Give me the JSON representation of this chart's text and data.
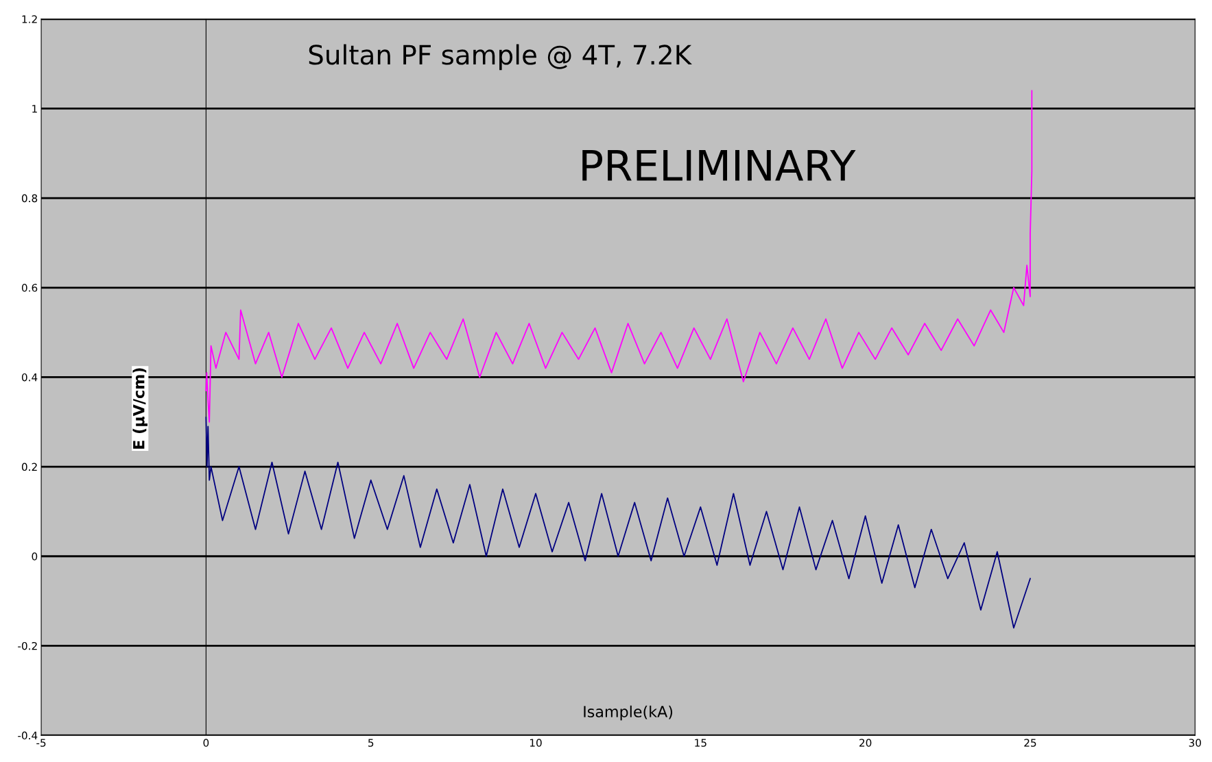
{
  "chart_data": {
    "type": "line",
    "title": "Sultan PF sample @ 4T, 7.2K",
    "xlabel": "Isample(kA)",
    "ylabel": "E (μV/cm)",
    "annotations": [
      "PRELIMINARY"
    ],
    "series": [
      {
        "color": "#000080",
        "x": [
          0,
          0.03,
          0.06,
          0.1,
          0.15,
          0.5,
          1,
          1.5,
          2,
          2.5,
          3,
          3.5,
          4,
          4.5,
          5,
          5.5,
          6,
          6.5,
          7,
          7.5,
          8,
          8.5,
          9,
          9.5,
          10,
          10.5,
          11,
          11.5,
          12,
          12.5,
          13,
          13.5,
          14,
          14.5,
          15,
          15.5,
          16,
          16.5,
          17,
          17.5,
          18,
          18.5,
          19,
          19.5,
          20,
          20.5,
          21,
          21.5,
          22,
          22.5,
          23,
          23.5,
          24,
          24.5,
          25
        ],
        "values": [
          0.31,
          0.2,
          0.29,
          0.17,
          0.2,
          0.08,
          0.2,
          0.06,
          0.21,
          0.05,
          0.19,
          0.06,
          0.21,
          0.04,
          0.17,
          0.06,
          0.18,
          0.02,
          0.15,
          0.03,
          0.16,
          0.0,
          0.15,
          0.02,
          0.14,
          0.01,
          0.12,
          -0.01,
          0.14,
          0.0,
          0.12,
          -0.01,
          0.13,
          0.0,
          0.11,
          -0.02,
          0.14,
          -0.02,
          0.1,
          -0.03,
          0.11,
          -0.03,
          0.08,
          -0.05,
          0.09,
          -0.06,
          0.07,
          -0.07,
          0.06,
          -0.05,
          0.03,
          -0.12,
          0.01,
          -0.16,
          -0.05
        ]
      },
      {
        "color": "#ff00ff",
        "x": [
          0,
          0.02,
          0.05,
          0.1,
          0.15,
          0.3,
          0.6,
          1.0,
          1.05,
          1.5,
          1.9,
          2.3,
          2.8,
          3.3,
          3.8,
          4.3,
          4.8,
          5.3,
          5.8,
          6.3,
          6.8,
          7.3,
          7.8,
          8.3,
          8.8,
          9.3,
          9.8,
          10.3,
          10.8,
          11.3,
          11.8,
          12.3,
          12.8,
          13.3,
          13.8,
          14.3,
          14.8,
          15.3,
          15.8,
          16.3,
          16.8,
          17.3,
          17.8,
          18.3,
          18.8,
          19.3,
          19.8,
          20.3,
          20.8,
          21.3,
          21.8,
          22.3,
          22.8,
          23.3,
          23.8,
          24.2,
          24.5,
          24.8,
          24.9,
          25.0,
          25.0,
          25.05,
          25.05
        ],
        "values": [
          0.37,
          0.41,
          0.36,
          0.3,
          0.47,
          0.42,
          0.5,
          0.44,
          0.55,
          0.43,
          0.5,
          0.4,
          0.52,
          0.44,
          0.51,
          0.42,
          0.5,
          0.43,
          0.52,
          0.42,
          0.5,
          0.44,
          0.53,
          0.4,
          0.5,
          0.43,
          0.52,
          0.42,
          0.5,
          0.44,
          0.51,
          0.41,
          0.52,
          0.43,
          0.5,
          0.42,
          0.51,
          0.44,
          0.53,
          0.39,
          0.5,
          0.43,
          0.51,
          0.44,
          0.53,
          0.42,
          0.5,
          0.44,
          0.51,
          0.45,
          0.52,
          0.46,
          0.53,
          0.47,
          0.55,
          0.5,
          0.6,
          0.56,
          0.65,
          0.58,
          0.72,
          0.86,
          1.04
        ]
      }
    ],
    "xlim": [
      -5,
      30
    ],
    "xticks": [
      -5,
      0,
      5,
      10,
      15,
      20,
      25,
      30
    ],
    "ylim": [
      -0.4,
      1.2
    ],
    "yticks": [
      -0.4,
      -0.2,
      0,
      0.2,
      0.4,
      0.6,
      0.8,
      1,
      1.2
    ],
    "grid": "y",
    "ref_lines": [
      {
        "axis": "x",
        "value": 0,
        "color": "#000000"
      }
    ]
  }
}
